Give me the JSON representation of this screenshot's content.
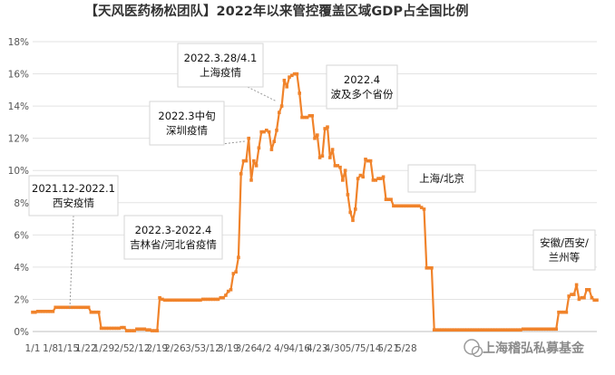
{
  "chart_data": {
    "type": "line",
    "title": "【天风医药杨松团队】2022年以来管控覆盖区域GDP占全国比例",
    "xlabel": "",
    "ylabel": "",
    "ylim": [
      0,
      18
    ],
    "yticks": [
      "0%",
      "2%",
      "4%",
      "6%",
      "8%",
      "10%",
      "12%",
      "14%",
      "16%",
      "18%"
    ],
    "xtick_labels": [
      "1/1",
      "1/8",
      "1/15",
      "1/22",
      "1/29",
      "2/5",
      "2/12",
      "2/19",
      "2/26",
      "3/5",
      "3/12",
      "3/19",
      "3/26",
      "4/2",
      "4/9",
      "4/16",
      "4/23",
      "4/30",
      "5/7",
      "5/14",
      "5/21",
      "5/28"
    ],
    "grid": true,
    "line_color": "#f0832b",
    "series": [
      {
        "name": "",
        "values": [
          1.2,
          1.2,
          1.25,
          1.25,
          1.25,
          1.25,
          1.25,
          1.25,
          1.25,
          1.5,
          1.5,
          1.5,
          1.5,
          1.5,
          1.5,
          1.5,
          1.5,
          1.5,
          1.5,
          1.5,
          1.5,
          1.5,
          1.5,
          1.2,
          1.2,
          1.2,
          1.2,
          0.2,
          0.2,
          0.2,
          0.2,
          0.2,
          0.2,
          0.2,
          0.2,
          0.25,
          0.25,
          0.05,
          0.05,
          0.05,
          0.05,
          0.15,
          0.15,
          0.15,
          0.15,
          0.1,
          0.1,
          0.05,
          0.05,
          0.05,
          2.1,
          2.0,
          1.95,
          1.95,
          1.95,
          1.95,
          1.95,
          1.95,
          1.95,
          1.95,
          1.95,
          1.95,
          1.95,
          1.95,
          1.95,
          1.95,
          1.95,
          2.0,
          2.0,
          2.0,
          2.0,
          2.0,
          2.0,
          2.0,
          2.1,
          2.1,
          2.25,
          2.5,
          2.6,
          3.6,
          3.7,
          4.6,
          9.8,
          10.6,
          10.6,
          12.0,
          9.4,
          10.6,
          10.3,
          11.4,
          12.4,
          12.4,
          12.5,
          12.4,
          11.3,
          11.8,
          12.5,
          13.6,
          14.0,
          15.6,
          15.2,
          15.8,
          15.9,
          16.0,
          16.0,
          14.8,
          13.3,
          13.3,
          13.3,
          13.4,
          13.4,
          12.0,
          12.2,
          10.8,
          10.9,
          12.6,
          12.7,
          10.8,
          11.3,
          10.3,
          10.3,
          10.2,
          9.4,
          10.0,
          8.5,
          7.4,
          6.9,
          7.6,
          9.5,
          9.7,
          9.6,
          10.7,
          10.6,
          10.6,
          9.4,
          9.4,
          9.5,
          9.5,
          9.6,
          8.2,
          8.2,
          8.2,
          7.8,
          7.8,
          7.8,
          7.8,
          7.8,
          7.8,
          7.8,
          7.8,
          7.8,
          7.8,
          7.8,
          7.7,
          7.6,
          3.95,
          3.95,
          3.95,
          0.1,
          0.1,
          0.1,
          0.1,
          0.1,
          0.1,
          0.1,
          0.1,
          0.1,
          0.1,
          0.1,
          0.1,
          0.1,
          0.1,
          0.1,
          0.1,
          0.1,
          0.1,
          0.1,
          0.1,
          0.1,
          0.1,
          0.1,
          0.1,
          0.1,
          0.1,
          0.1,
          0.1,
          0.1,
          0.1,
          0.1,
          0.1,
          0.1,
          0.1,
          0.1,
          0.15,
          0.15,
          0.15,
          0.15,
          0.15,
          0.15,
          0.15,
          0.15,
          0.15,
          0.15,
          0.15,
          0.15,
          0.15,
          0.15,
          1.2,
          1.2,
          1.2,
          1.2,
          2.2,
          2.3,
          2.3,
          2.9,
          2.0,
          2.1,
          2.1,
          2.6,
          2.6,
          2.1,
          1.95,
          1.95
        ]
      }
    ],
    "annotations": [
      {
        "lines": [
          "2021.12-2022.1",
          "西安疫情"
        ],
        "x_index": 21,
        "y": 9.0
      },
      {
        "lines": [
          "2022.3-2022.4",
          "吉林省/河北省疫情"
        ],
        "x_index": 62,
        "y": 5.0
      },
      {
        "lines": [
          "2022.3中旬",
          "深圳疫情"
        ],
        "x_index": 82,
        "y": 13.8
      },
      {
        "lines": [
          "2022.3.28/4.1",
          "上海疫情"
        ],
        "x_index": 96,
        "y": 16.8
      },
      {
        "lines": [
          "2022.4",
          "波及多个省份"
        ],
        "x_index": 120,
        "y": 15.1
      },
      {
        "lines": [
          "上海/北京"
        ],
        "x_index": 144,
        "y": 9.5
      },
      {
        "lines": [
          "安徽/西安/",
          "兰州等"
        ],
        "x_index": 214,
        "y": 5.1
      }
    ]
  },
  "watermark": "上海稽弘私募基金"
}
